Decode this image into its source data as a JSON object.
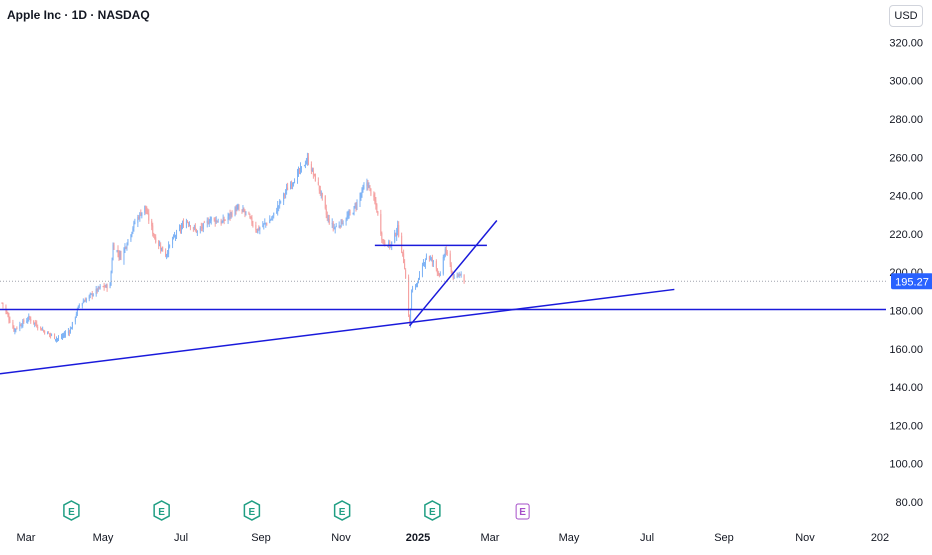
{
  "header": {
    "title": "Apple Inc · 1D · NASDAQ",
    "currency": "USD"
  },
  "chart_data": {
    "type": "candlestick",
    "x_tick_labels": [
      "Mar",
      "May",
      "Jul",
      "Sep",
      "Nov",
      "2025",
      "Mar",
      "May",
      "Jul",
      "Sep",
      "Nov",
      "202"
    ],
    "y_ticks": [
      80,
      100,
      120,
      140,
      160,
      180,
      200,
      220,
      240,
      260,
      280,
      300,
      320
    ],
    "y_tick_labels": [
      "80.00",
      "100.00",
      "120.00",
      "140.00",
      "160.00",
      "180.00",
      "200.00",
      "220.00",
      "240.00",
      "260.00",
      "280.00",
      "300.00",
      "320.00"
    ],
    "ylim": [
      76,
      338
    ],
    "last_price": "195.27",
    "earnings_markers": [
      {
        "label": "E",
        "date": "2024-05-02",
        "state": "past"
      },
      {
        "label": "E",
        "date": "2024-08-01",
        "state": "past"
      },
      {
        "label": "E",
        "date": "2024-10-31",
        "state": "past"
      },
      {
        "label": "E",
        "date": "2025-01-30",
        "state": "past"
      },
      {
        "label": "E",
        "date": "2025-05-01",
        "state": "past"
      },
      {
        "label": "E",
        "date": "2025-07-31",
        "state": "upcoming"
      }
    ],
    "price_path": [
      [
        "2024-02-22",
        184
      ],
      [
        "2024-03-05",
        170
      ],
      [
        "2024-03-20",
        176
      ],
      [
        "2024-04-05",
        169
      ],
      [
        "2024-04-19",
        165
      ],
      [
        "2024-05-01",
        170
      ],
      [
        "2024-05-10",
        183
      ],
      [
        "2024-05-31",
        192
      ],
      [
        "2024-06-10",
        193
      ],
      [
        "2024-06-13",
        214
      ],
      [
        "2024-06-21",
        208
      ],
      [
        "2024-07-05",
        226
      ],
      [
        "2024-07-15",
        234
      ],
      [
        "2024-07-25",
        218
      ],
      [
        "2024-08-05",
        209
      ],
      [
        "2024-08-12",
        217
      ],
      [
        "2024-08-26",
        227
      ],
      [
        "2024-09-06",
        221
      ],
      [
        "2024-09-20",
        228
      ],
      [
        "2024-10-01",
        226
      ],
      [
        "2024-10-15",
        233
      ],
      [
        "2024-10-25",
        231
      ],
      [
        "2024-11-05",
        222
      ],
      [
        "2024-11-20",
        228
      ],
      [
        "2024-12-05",
        243
      ],
      [
        "2024-12-16",
        251
      ],
      [
        "2024-12-26",
        259
      ],
      [
        "2025-01-08",
        242
      ],
      [
        "2025-01-15",
        228
      ],
      [
        "2025-01-22",
        223
      ],
      [
        "2025-02-03",
        228
      ],
      [
        "2025-02-10",
        232
      ],
      [
        "2025-02-24",
        247
      ],
      [
        "2025-03-05",
        235
      ],
      [
        "2025-03-12",
        216
      ],
      [
        "2025-03-20",
        214
      ],
      [
        "2025-03-27",
        223
      ],
      [
        "2025-04-03",
        203
      ],
      [
        "2025-04-08",
        172
      ],
      [
        "2025-04-10",
        190
      ],
      [
        "2025-04-17",
        196
      ],
      [
        "2025-04-25",
        209
      ],
      [
        "2025-05-02",
        205
      ],
      [
        "2025-05-09",
        198
      ],
      [
        "2025-05-14",
        212
      ],
      [
        "2025-05-23",
        196
      ],
      [
        "2025-05-30",
        200
      ],
      [
        "2025-06-02",
        195
      ]
    ],
    "drawings": [
      {
        "type": "horizontal_ray",
        "price": 180.5,
        "from": "2024-02-20"
      },
      {
        "type": "segment",
        "from": [
          "2025-03-04",
          214
        ],
        "to": [
          "2025-06-25",
          214
        ]
      },
      {
        "type": "segment",
        "from": [
          "2024-02-20",
          147
        ],
        "to": [
          "2025-12-31",
          191
        ]
      },
      {
        "type": "segment",
        "from": [
          "2025-04-08",
          172
        ],
        "to": [
          "2025-07-05",
          227
        ]
      }
    ],
    "colors": {
      "up": "#7fb3f5",
      "down": "#f5a0a0",
      "drawing": "#1a1adb",
      "earnings": "#1f9e83",
      "earnings_upcoming": "#a64fc9",
      "axis_text": "#131722"
    }
  }
}
